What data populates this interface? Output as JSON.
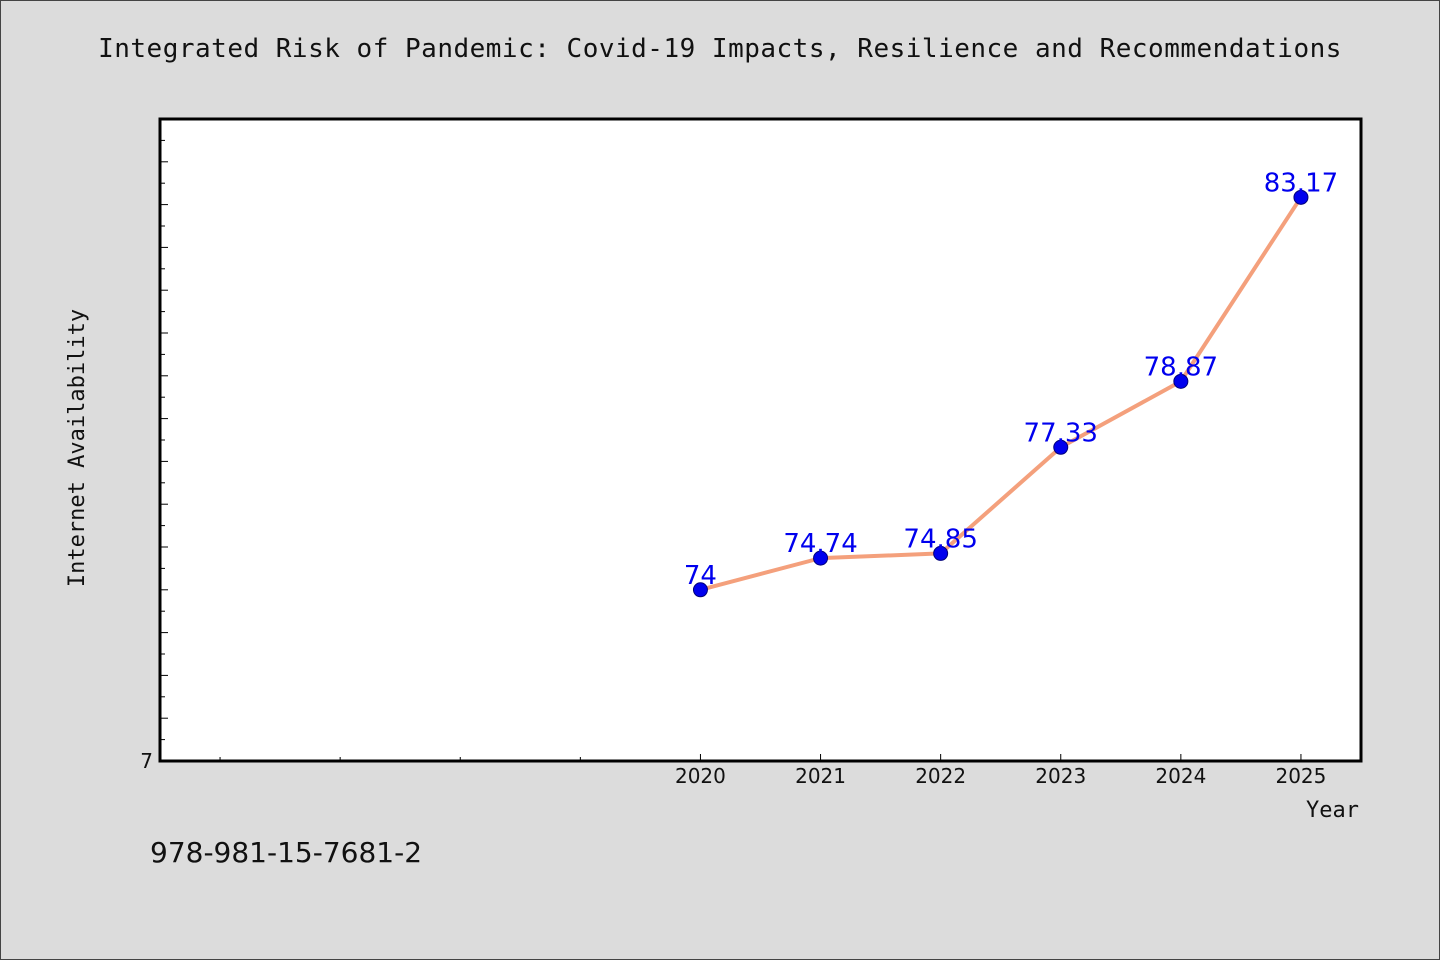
{
  "chart_data": {
    "type": "line",
    "title": "Integrated Risk of Pandemic: Covid-19 Impacts, Resilience and Recommendations",
    "xlabel": "Year",
    "ylabel": "Internet Availability",
    "x": [
      2020,
      2021,
      2022,
      2023,
      2024,
      2025
    ],
    "x_tick_labels": [
      "2020",
      "2021",
      "2022",
      "2023",
      "2024",
      "2025"
    ],
    "xlim": [
      2015.5,
      2025.5
    ],
    "series": [
      {
        "values": [
          74,
          74.74,
          74.85,
          77.33,
          78.87,
          83.17
        ],
        "data_labels": [
          "74",
          "74.74",
          "74.85",
          "77.33",
          "78.87",
          "83.17"
        ]
      }
    ],
    "ylim": [
      70,
      85
    ],
    "y_tick_labels": [
      "7"
    ],
    "grid": false,
    "legend": "none",
    "colors": {
      "line": "#f4a07c",
      "marker": "#0000ee",
      "data_label": "#0000ee",
      "background": "#dcdcdc",
      "plot_area": "#ffffff"
    }
  },
  "footer": {
    "code": "978-981-15-7681-2"
  }
}
